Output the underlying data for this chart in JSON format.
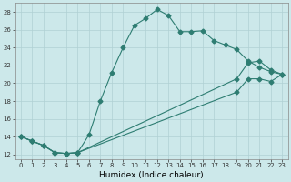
{
  "title": "",
  "xlabel": "Humidex (Indice chaleur)",
  "bg_color": "#cce8ea",
  "line_color": "#2e7d72",
  "grid_color": "#b0d0d4",
  "xlim": [
    -0.5,
    23.5
  ],
  "ylim": [
    11.5,
    29.0
  ],
  "xticks": [
    0,
    1,
    2,
    3,
    4,
    5,
    6,
    7,
    8,
    9,
    10,
    11,
    12,
    13,
    14,
    15,
    16,
    17,
    18,
    19,
    20,
    21,
    22,
    23
  ],
  "yticks": [
    12,
    14,
    16,
    18,
    20,
    22,
    24,
    26,
    28
  ],
  "line1_x": [
    0,
    1,
    2,
    3,
    4,
    5,
    6,
    7,
    8,
    9,
    10,
    11,
    12,
    13,
    14,
    15,
    16,
    17,
    18,
    19,
    20,
    21,
    22,
    23
  ],
  "line1_y": [
    14.0,
    13.5,
    13.0,
    12.2,
    12.1,
    12.2,
    14.2,
    18.0,
    21.2,
    24.0,
    26.5,
    27.3,
    28.3,
    27.6,
    25.8,
    25.8,
    25.9,
    24.8,
    24.3,
    23.8,
    22.5,
    21.8,
    21.3,
    21.0
  ],
  "line2_x": [
    0,
    1,
    2,
    3,
    4,
    5,
    19,
    20,
    21,
    22,
    23
  ],
  "line2_y": [
    14.0,
    13.5,
    13.0,
    12.2,
    12.1,
    12.2,
    20.5,
    22.3,
    22.5,
    21.5,
    21.0
  ],
  "line3_x": [
    0,
    1,
    2,
    3,
    4,
    5,
    19,
    20,
    21,
    22,
    23
  ],
  "line3_y": [
    14.0,
    13.5,
    13.0,
    12.2,
    12.1,
    12.2,
    19.0,
    20.5,
    20.5,
    20.2,
    21.0
  ],
  "markersize": 2.5
}
